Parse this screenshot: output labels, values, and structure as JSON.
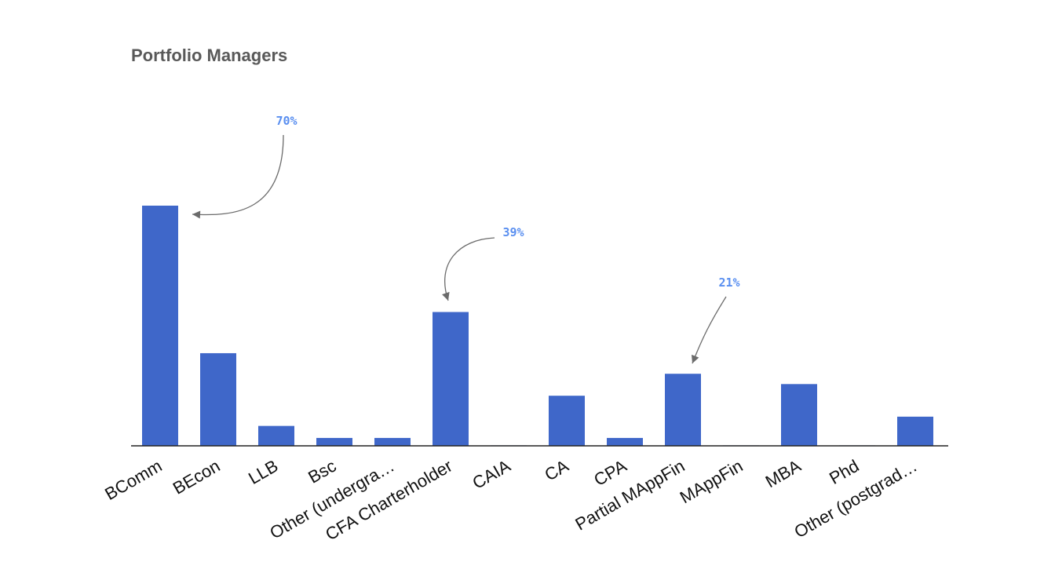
{
  "chart_data": {
    "type": "bar",
    "title": "Portfolio Managers",
    "xlabel": "",
    "ylabel": "",
    "categories": [
      "BComm",
      "BEcon",
      "LLB",
      "Bsc",
      "Other (undergra…",
      "CFA Charterholder",
      "CAIA",
      "CA",
      "CPA",
      "Partial MAppFin",
      "MAppFin",
      "MBA",
      "Phd",
      "Other (postgrad…"
    ],
    "values": [
      70,
      27,
      5.8,
      2.3,
      2.3,
      39,
      0,
      14.6,
      2.3,
      21,
      0,
      18,
      0,
      8.5
    ],
    "ylim": [
      0,
      70
    ],
    "grid": false,
    "legend": "none",
    "annotations": [
      {
        "category": "BComm",
        "text": "70%"
      },
      {
        "category": "CFA Charterholder",
        "text": "39%"
      },
      {
        "category": "Partial MAppFin",
        "text": "21%"
      }
    ]
  },
  "colors": {
    "bar": "#3f67c9",
    "annotation_text": "#5a8ff0",
    "annotation_arrow": "#6b6b6b",
    "title": "#595959"
  }
}
